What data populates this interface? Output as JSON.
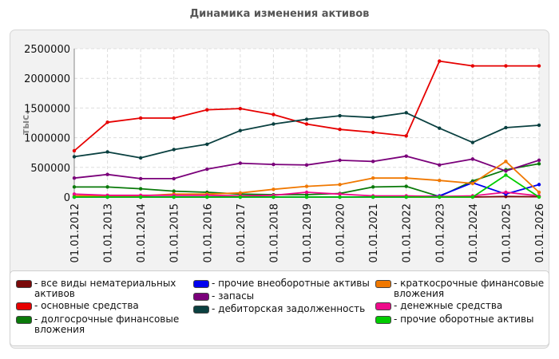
{
  "title": "Динамика изменения активов",
  "chart_data": {
    "type": "line",
    "title": "Динамика изменения активов",
    "ylabel": "тыс.",
    "xlabel": "",
    "ylim": [
      0,
      2500000
    ],
    "yticks": [
      0,
      500000,
      1000000,
      1500000,
      2000000,
      2500000
    ],
    "ytick_labels": [
      "0",
      "500000",
      "1000000",
      "1500000",
      "2000000",
      "2500000"
    ],
    "categories": [
      "01.01.2012",
      "01.01.2013",
      "01.01.2014",
      "01.01.2015",
      "01.01.2016",
      "01.01.2017",
      "01.01.2018",
      "01.01.2019",
      "01.01.2020",
      "01.01.2021",
      "01.01.2022",
      "01.01.2023",
      "01.01.2024",
      "01.01.2025",
      "01.01.2026"
    ],
    "grid": true,
    "legend_position": "bottom",
    "series": [
      {
        "name": "- все виды нематериальных активов",
        "color": "#7a0a0a",
        "values": [
          0,
          0,
          0,
          0,
          0,
          0,
          0,
          0,
          0,
          0,
          0,
          0,
          0,
          10000,
          5000
        ]
      },
      {
        "name": "- основные средства",
        "color": "#e60000",
        "values": [
          780000,
          1260000,
          1330000,
          1330000,
          1470000,
          1490000,
          1390000,
          1230000,
          1140000,
          1090000,
          1030000,
          2290000,
          2210000,
          2210000,
          2210000
        ]
      },
      {
        "name": "- долгосрочные финансовые вложения",
        "color": "#0a7a0a",
        "values": [
          170000,
          170000,
          140000,
          100000,
          80000,
          50000,
          40000,
          40000,
          60000,
          170000,
          180000,
          10000,
          270000,
          460000,
          560000
        ]
      },
      {
        "name": "- прочие внеоборотные активы",
        "color": "#0000ee",
        "values": [
          0,
          0,
          0,
          0,
          0,
          0,
          0,
          0,
          0,
          0,
          0,
          20000,
          240000,
          50000,
          210000
        ]
      },
      {
        "name": "- запасы",
        "color": "#7a007a",
        "values": [
          320000,
          380000,
          310000,
          310000,
          470000,
          570000,
          550000,
          540000,
          620000,
          600000,
          690000,
          540000,
          640000,
          440000,
          620000
        ]
      },
      {
        "name": "- дебиторская задолженность",
        "color": "#0a4040",
        "values": [
          680000,
          760000,
          660000,
          800000,
          890000,
          1120000,
          1230000,
          1310000,
          1370000,
          1340000,
          1420000,
          1160000,
          920000,
          1170000,
          1210000
        ]
      },
      {
        "name": "- краткосрочные финансовые вложения",
        "color": "#f07800",
        "values": [
          20000,
          20000,
          20000,
          50000,
          50000,
          70000,
          130000,
          180000,
          210000,
          320000,
          320000,
          280000,
          230000,
          600000,
          80000
        ]
      },
      {
        "name": "- денежные средства",
        "color": "#ee0a8a",
        "values": [
          50000,
          30000,
          30000,
          30000,
          30000,
          20000,
          30000,
          80000,
          50000,
          20000,
          20000,
          10000,
          20000,
          80000,
          20000
        ]
      },
      {
        "name": "- прочие оборотные активы",
        "color": "#00cc00",
        "values": [
          0,
          0,
          0,
          0,
          0,
          0,
          0,
          0,
          0,
          0,
          0,
          0,
          0,
          370000,
          0
        ]
      }
    ]
  },
  "legend": [
    {
      "label": "- все виды нематериальных активов",
      "color": "#7a0a0a"
    },
    {
      "label": "- основные средства",
      "color": "#e60000"
    },
    {
      "label": "- долгосрочные финансовые вложения",
      "color": "#0a7a0a"
    },
    {
      "label": "- прочие внеоборотные активы",
      "color": "#0000ee"
    },
    {
      "label": "- запасы",
      "color": "#7a007a"
    },
    {
      "label": "- дебиторская задолженность",
      "color": "#0a4040"
    },
    {
      "label": "- краткосрочные финансовые вложения",
      "color": "#f07800"
    },
    {
      "label": "- денежные средства",
      "color": "#ee0a8a"
    },
    {
      "label": "- прочие оборотные активы",
      "color": "#00cc00"
    }
  ]
}
